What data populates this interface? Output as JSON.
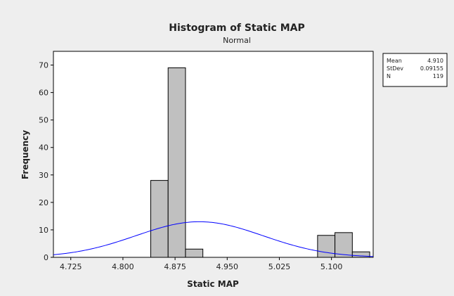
{
  "chart_data": {
    "type": "bar",
    "title": "Histogram of Static MAP",
    "subtitle": "Normal",
    "xlabel": "Static MAP",
    "ylabel": "Frequency",
    "xlim": [
      4.7,
      5.16
    ],
    "ylim": [
      0,
      75
    ],
    "x_ticks": [
      "4.725",
      "4.800",
      "4.875",
      "4.950",
      "5.025",
      "5.100"
    ],
    "y_ticks": [
      "0",
      "10",
      "20",
      "30",
      "40",
      "50",
      "60",
      "70"
    ],
    "bin_width": 0.025,
    "bins": [
      {
        "start": 4.84,
        "count": 28
      },
      {
        "start": 4.865,
        "count": 69
      },
      {
        "start": 4.89,
        "count": 3
      },
      {
        "start": 5.08,
        "count": 8
      },
      {
        "start": 5.105,
        "count": 9
      },
      {
        "start": 5.13,
        "count": 2
      }
    ],
    "fit": {
      "type": "normal",
      "mean": 4.91,
      "stdev": 0.09155,
      "n": 119
    },
    "stats": [
      {
        "label": "Mean",
        "value": "4.910"
      },
      {
        "label": "StDev",
        "value": "0.09155"
      },
      {
        "label": "N",
        "value": "119"
      }
    ],
    "bar_color": "#c0c0c0",
    "curve_color": "#0000ff",
    "grid": false,
    "legend": "top-right"
  }
}
